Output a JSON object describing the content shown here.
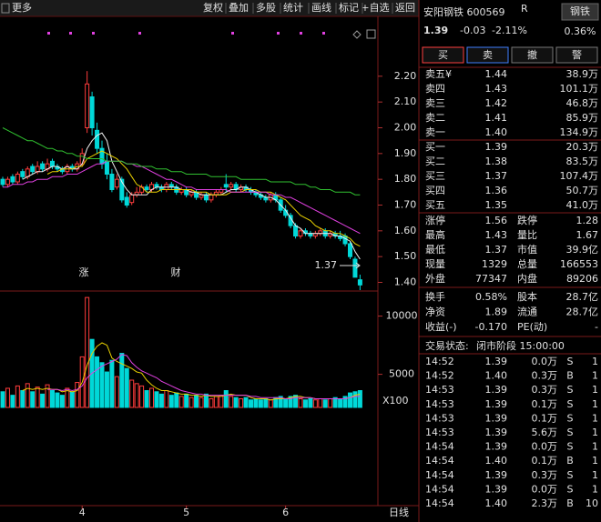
{
  "toolbar": {
    "more": "更多",
    "buttons": [
      "复权",
      "叠加",
      "多股",
      "统计",
      "画线",
      "标记",
      "+自选",
      "返回"
    ]
  },
  "chart_data": {
    "type": "candlestick",
    "categories": [
      null,
      null,
      null,
      null,
      null,
      null,
      null,
      null,
      null,
      null,
      null,
      null,
      null,
      null,
      null,
      null,
      "4",
      null,
      null,
      null,
      null,
      null,
      null,
      null,
      null,
      null,
      null,
      null,
      null,
      null,
      null,
      null,
      null,
      null,
      null,
      null,
      null,
      "5",
      null,
      null,
      null,
      null,
      null,
      null,
      null,
      null,
      null,
      null,
      null,
      null,
      null,
      null,
      null,
      null,
      null,
      null,
      null,
      "6",
      null,
      null,
      null,
      null,
      null,
      null,
      null,
      null,
      null,
      null,
      null,
      null,
      null,
      null,
      null
    ],
    "candles": [
      [
        1.8,
        1.81,
        1.77,
        1.78
      ],
      [
        1.78,
        1.81,
        1.77,
        1.8
      ],
      [
        1.81,
        1.82,
        1.78,
        1.79
      ],
      [
        1.79,
        1.83,
        1.78,
        1.82
      ],
      [
        1.83,
        1.84,
        1.8,
        1.81
      ],
      [
        1.81,
        1.85,
        1.8,
        1.84
      ],
      [
        1.85,
        1.86,
        1.82,
        1.83
      ],
      [
        1.83,
        1.87,
        1.82,
        1.85
      ],
      [
        1.86,
        1.87,
        1.83,
        1.84
      ],
      [
        1.84,
        1.88,
        1.83,
        1.86
      ],
      [
        1.87,
        1.88,
        1.84,
        1.85
      ],
      [
        1.85,
        1.86,
        1.83,
        1.84
      ],
      [
        1.84,
        1.85,
        1.82,
        1.83
      ],
      [
        1.83,
        1.86,
        1.82,
        1.85
      ],
      [
        1.85,
        1.86,
        1.83,
        1.84
      ],
      [
        1.84,
        1.87,
        1.83,
        1.86
      ],
      [
        1.86,
        1.92,
        1.85,
        1.9
      ],
      [
        2.0,
        2.22,
        1.98,
        2.17
      ],
      [
        2.12,
        2.14,
        1.97,
        2.0
      ],
      [
        1.99,
        2.02,
        1.9,
        1.92
      ],
      [
        1.92,
        1.95,
        1.84,
        1.86
      ],
      [
        1.87,
        1.9,
        1.8,
        1.82
      ],
      [
        1.82,
        1.84,
        1.75,
        1.76
      ],
      [
        1.77,
        1.82,
        1.76,
        1.8
      ],
      [
        1.8,
        1.81,
        1.71,
        1.72
      ],
      [
        1.73,
        1.75,
        1.69,
        1.7
      ],
      [
        1.71,
        1.75,
        1.7,
        1.74
      ],
      [
        1.74,
        1.77,
        1.73,
        1.75
      ],
      [
        1.75,
        1.78,
        1.74,
        1.77
      ],
      [
        1.77,
        1.78,
        1.75,
        1.76
      ],
      [
        1.76,
        1.79,
        1.75,
        1.78
      ],
      [
        1.78,
        1.79,
        1.76,
        1.77
      ],
      [
        1.77,
        1.78,
        1.75,
        1.76
      ],
      [
        1.76,
        1.79,
        1.75,
        1.78
      ],
      [
        1.78,
        1.79,
        1.76,
        1.77
      ],
      [
        1.77,
        1.78,
        1.74,
        1.75
      ],
      [
        1.75,
        1.77,
        1.74,
        1.76
      ],
      [
        1.76,
        1.77,
        1.73,
        1.74
      ],
      [
        1.74,
        1.76,
        1.73,
        1.75
      ],
      [
        1.75,
        1.76,
        1.72,
        1.73
      ],
      [
        1.73,
        1.75,
        1.72,
        1.74
      ],
      [
        1.74,
        1.75,
        1.71,
        1.72
      ],
      [
        1.72,
        1.75,
        1.71,
        1.74
      ],
      [
        1.74,
        1.76,
        1.73,
        1.75
      ],
      [
        1.75,
        1.77,
        1.74,
        1.76
      ],
      [
        1.78,
        1.82,
        1.75,
        1.77
      ],
      [
        1.77,
        1.79,
        1.76,
        1.78
      ],
      [
        1.78,
        1.79,
        1.75,
        1.76
      ],
      [
        1.76,
        1.78,
        1.75,
        1.77
      ],
      [
        1.77,
        1.78,
        1.75,
        1.76
      ],
      [
        1.76,
        1.77,
        1.74,
        1.75
      ],
      [
        1.75,
        1.76,
        1.73,
        1.74
      ],
      [
        1.74,
        1.75,
        1.72,
        1.73
      ],
      [
        1.73,
        1.74,
        1.71,
        1.72
      ],
      [
        1.72,
        1.75,
        1.71,
        1.74
      ],
      [
        1.74,
        1.75,
        1.71,
        1.72
      ],
      [
        1.72,
        1.73,
        1.67,
        1.68
      ],
      [
        1.68,
        1.7,
        1.65,
        1.66
      ],
      [
        1.66,
        1.67,
        1.61,
        1.62
      ],
      [
        1.62,
        1.63,
        1.57,
        1.58
      ],
      [
        1.58,
        1.61,
        1.57,
        1.6
      ],
      [
        1.6,
        1.61,
        1.58,
        1.59
      ],
      [
        1.59,
        1.6,
        1.57,
        1.58
      ],
      [
        1.58,
        1.6,
        1.57,
        1.59
      ],
      [
        1.59,
        1.61,
        1.58,
        1.6
      ],
      [
        1.6,
        1.61,
        1.57,
        1.58
      ],
      [
        1.58,
        1.6,
        1.57,
        1.59
      ],
      [
        1.59,
        1.6,
        1.57,
        1.58
      ],
      [
        1.58,
        1.6,
        1.56,
        1.57
      ],
      [
        1.58,
        1.59,
        1.54,
        1.55
      ],
      [
        1.55,
        1.56,
        1.49,
        1.5
      ],
      [
        1.49,
        1.5,
        1.42,
        1.42
      ],
      [
        1.41,
        1.43,
        1.37,
        1.39
      ]
    ],
    "up_color": "#ff3c3c",
    "down_color": "#00d8d8",
    "ylim": [
      1.37,
      2.39
    ],
    "yticks": [
      {
        "value": 1.4,
        "label": "1.40"
      },
      {
        "value": 1.5,
        "label": "1.50"
      },
      {
        "value": 1.6,
        "label": "1.60"
      },
      {
        "value": 1.7,
        "label": "1.70"
      },
      {
        "value": 1.8,
        "label": "1.80"
      },
      {
        "value": 1.9,
        "label": "1.90"
      },
      {
        "value": 2.0,
        "label": "2.00"
      },
      {
        "value": 2.1,
        "label": "2.10"
      },
      {
        "value": 2.2,
        "label": "2.20"
      }
    ],
    "series": [
      {
        "color": "#f0f0f0",
        "values": [
          null,
          null,
          null,
          null,
          1.8,
          1.81,
          1.82,
          1.83,
          1.83,
          1.84,
          1.85,
          1.85,
          1.84,
          1.85,
          1.84,
          1.84,
          1.86,
          1.92,
          1.95,
          1.97,
          1.98,
          1.95,
          1.87,
          1.83,
          1.79,
          1.76,
          1.74,
          1.74,
          1.74,
          1.74,
          1.76,
          1.77,
          1.77,
          1.77,
          1.77,
          1.77,
          1.76,
          1.76,
          1.75,
          1.75,
          1.74,
          1.74,
          1.74,
          1.74,
          1.74,
          1.75,
          1.76,
          1.76,
          1.77,
          1.77,
          1.76,
          1.75,
          1.74,
          1.73,
          1.73,
          1.72,
          1.7,
          1.68,
          1.65,
          1.62,
          1.61,
          1.59,
          1.59,
          1.59,
          1.59,
          1.59,
          1.59,
          1.58,
          1.58,
          1.57,
          1.56,
          1.52,
          1.49
        ]
      },
      {
        "color": "#e8d000",
        "values": [
          null,
          null,
          null,
          null,
          null,
          null,
          null,
          null,
          null,
          1.82,
          1.83,
          1.83,
          1.84,
          1.84,
          1.84,
          1.85,
          1.85,
          1.88,
          1.89,
          1.9,
          1.91,
          1.9,
          1.89,
          1.88,
          1.86,
          1.84,
          1.81,
          1.78,
          1.77,
          1.75,
          1.75,
          1.75,
          1.76,
          1.76,
          1.76,
          1.76,
          1.76,
          1.76,
          1.76,
          1.75,
          1.75,
          1.75,
          1.74,
          1.74,
          1.74,
          1.74,
          1.75,
          1.75,
          1.75,
          1.76,
          1.76,
          1.76,
          1.75,
          1.75,
          1.75,
          1.74,
          1.73,
          1.72,
          1.7,
          1.68,
          1.66,
          1.65,
          1.64,
          1.62,
          1.61,
          1.6,
          1.6,
          1.59,
          1.59,
          1.58,
          1.57,
          1.55,
          1.54
        ]
      },
      {
        "color": "#e040e0",
        "values": [
          1.77,
          1.77,
          1.78,
          1.78,
          1.78,
          1.79,
          1.79,
          1.8,
          1.8,
          1.8,
          1.81,
          1.81,
          1.81,
          1.82,
          1.82,
          1.82,
          1.83,
          1.84,
          1.85,
          1.86,
          1.86,
          1.87,
          1.87,
          1.87,
          1.87,
          1.86,
          1.86,
          1.85,
          1.85,
          1.84,
          1.83,
          1.82,
          1.81,
          1.8,
          1.8,
          1.79,
          1.78,
          1.77,
          1.77,
          1.76,
          1.76,
          1.76,
          1.76,
          1.76,
          1.76,
          1.76,
          1.75,
          1.75,
          1.75,
          1.75,
          1.75,
          1.75,
          1.75,
          1.75,
          1.74,
          1.74,
          1.74,
          1.73,
          1.73,
          1.72,
          1.71,
          1.7,
          1.69,
          1.68,
          1.67,
          1.66,
          1.65,
          1.64,
          1.63,
          1.62,
          1.61,
          1.6,
          1.59
        ]
      },
      {
        "color": "#30c030",
        "values": [
          2.0,
          1.99,
          1.98,
          1.97,
          1.96,
          1.95,
          1.95,
          1.94,
          1.93,
          1.92,
          1.92,
          1.91,
          1.91,
          1.9,
          1.9,
          1.89,
          1.89,
          1.88,
          1.88,
          1.88,
          1.88,
          1.87,
          1.87,
          1.87,
          1.87,
          1.86,
          1.86,
          1.86,
          1.85,
          1.85,
          1.85,
          1.84,
          1.84,
          1.84,
          1.83,
          1.83,
          1.83,
          1.82,
          1.82,
          1.82,
          1.82,
          1.82,
          1.81,
          1.81,
          1.81,
          1.81,
          1.81,
          1.81,
          1.8,
          1.8,
          1.8,
          1.8,
          1.8,
          1.8,
          1.79,
          1.79,
          1.79,
          1.79,
          1.79,
          1.78,
          1.78,
          1.78,
          1.77,
          1.77,
          1.76,
          1.76,
          1.76,
          1.75,
          1.75,
          1.75,
          1.75,
          1.74,
          1.74
        ]
      }
    ],
    "volume": {
      "unit": "X100",
      "ylim": [
        2000,
        12000
      ],
      "yticks": [
        5000,
        10000
      ],
      "values": [
        3500,
        3800,
        3200,
        4000,
        3600,
        4200,
        3500,
        3900,
        3300,
        4100,
        3600,
        3400,
        3200,
        3800,
        3500,
        4300,
        6500,
        11600,
        8000,
        6500,
        6000,
        5200,
        6200,
        4800,
        6800,
        5500,
        4500,
        4200,
        4000,
        3600,
        3800,
        3500,
        3300,
        3600,
        3200,
        3400,
        3100,
        3300,
        3000,
        3200,
        3000,
        3300,
        2900,
        3100,
        3200,
        3600,
        3100,
        3000,
        2900,
        3000,
        2800,
        2900,
        2800,
        2900,
        2800,
        3000,
        3100,
        2900,
        3100,
        3200,
        2900,
        2800,
        2900,
        2800,
        2900,
        2800,
        2900,
        3000,
        2900,
        3100,
        3400,
        3500,
        3600
      ],
      "series": [
        {
          "color": "#e8d000",
          "values": [
            null,
            null,
            null,
            null,
            3600,
            3800,
            3700,
            3800,
            3700,
            3800,
            3700,
            3700,
            3500,
            3600,
            3500,
            3600,
            4300,
            5800,
            6800,
            7400,
            7700,
            7500,
            6400,
            6100,
            5900,
            5700,
            5500,
            5200,
            5100,
            4500,
            4100,
            3800,
            3600,
            3600,
            3500,
            3400,
            3300,
            3300,
            3200,
            3200,
            3100,
            3200,
            3100,
            3100,
            3100,
            3200,
            3300,
            3200,
            3200,
            3200,
            3000,
            2900,
            2900,
            2900,
            2800,
            2900,
            2900,
            2900,
            3000,
            3100,
            3100,
            3000,
            3000,
            2900,
            2900,
            2900,
            2900,
            2900,
            2900,
            2900,
            3000,
            3200,
            3300
          ]
        },
        {
          "color": "#e040e0",
          "values": [
            null,
            null,
            null,
            null,
            null,
            null,
            null,
            null,
            null,
            3700,
            3700,
            3700,
            3600,
            3700,
            3600,
            3700,
            4000,
            4700,
            5100,
            5400,
            5700,
            5900,
            6100,
            6300,
            6700,
            6600,
            6000,
            5600,
            5300,
            5100,
            4900,
            4700,
            4400,
            4200,
            4000,
            3800,
            3600,
            3500,
            3400,
            3300,
            3300,
            3200,
            3200,
            3200,
            3200,
            3200,
            3200,
            3200,
            3200,
            3200,
            3100,
            3100,
            3000,
            3000,
            3000,
            3000,
            3000,
            2900,
            2900,
            3000,
            3000,
            3000,
            3000,
            2900,
            2900,
            2900,
            2900,
            2900,
            2900,
            2900,
            3000,
            3100,
            3100
          ]
        }
      ]
    },
    "low_label": "1.37",
    "event_labels": [
      "涨",
      "财"
    ],
    "period": "日线"
  },
  "quote": {
    "title": "安阳钢铁 600569",
    "flag": "R",
    "sector": "钢铁",
    "sector_change": "0.36%",
    "price": "1.39",
    "change": "-0.03",
    "change_pct": "-2.11%",
    "buttons": [
      "买",
      "卖",
      "撤",
      "警"
    ],
    "asks": [
      [
        "卖五¥",
        "1.44",
        "38.9万"
      ],
      [
        "卖四",
        "1.43",
        "101.1万"
      ],
      [
        "卖三",
        "1.42",
        "46.8万"
      ],
      [
        "卖二",
        "1.41",
        "85.9万"
      ],
      [
        "卖一",
        "1.40",
        "134.9万"
      ]
    ],
    "bids": [
      [
        "买一",
        "1.39",
        "20.3万"
      ],
      [
        "买二",
        "1.38",
        "83.5万"
      ],
      [
        "买三",
        "1.37",
        "107.4万"
      ],
      [
        "买四",
        "1.36",
        "50.7万"
      ],
      [
        "买五",
        "1.35",
        "41.0万"
      ]
    ],
    "stats": [
      [
        "涨停",
        "1.56",
        "跌停",
        "1.28"
      ],
      [
        "最高",
        "1.43",
        "量比",
        "1.67"
      ],
      [
        "最低",
        "1.37",
        "市值",
        "39.9亿"
      ],
      [
        "现量",
        "1329",
        "总量",
        "166553"
      ],
      [
        "外盘",
        "77347",
        "内盘",
        "89206"
      ]
    ],
    "stats2": [
      [
        "换手",
        "0.58%",
        "股本",
        "28.7亿"
      ],
      [
        "净资",
        "1.89",
        "流通",
        "28.7亿"
      ],
      [
        "收益(-)",
        "-0.170",
        "PE(动)",
        "-"
      ]
    ],
    "status_label": "交易状态:",
    "status": "闭市阶段 15:00:00",
    "ticks": [
      [
        "14:52",
        "1.39",
        "0.0万",
        "S",
        "1"
      ],
      [
        "14:52",
        "1.40",
        "0.3万",
        "B",
        "1"
      ],
      [
        "14:53",
        "1.39",
        "0.3万",
        "S",
        "1"
      ],
      [
        "14:53",
        "1.39",
        "0.1万",
        "S",
        "1"
      ],
      [
        "14:53",
        "1.39",
        "0.1万",
        "S",
        "1"
      ],
      [
        "14:53",
        "1.39",
        "5.6万",
        "S",
        "1"
      ],
      [
        "14:54",
        "1.39",
        "0.0万",
        "S",
        "1"
      ],
      [
        "14:54",
        "1.40",
        "0.1万",
        "B",
        "1"
      ],
      [
        "14:54",
        "1.39",
        "0.3万",
        "S",
        "1"
      ],
      [
        "14:54",
        "1.39",
        "0.0万",
        "S",
        "1"
      ],
      [
        "14:54",
        "1.40",
        "2.3万",
        "B",
        "10"
      ]
    ]
  }
}
